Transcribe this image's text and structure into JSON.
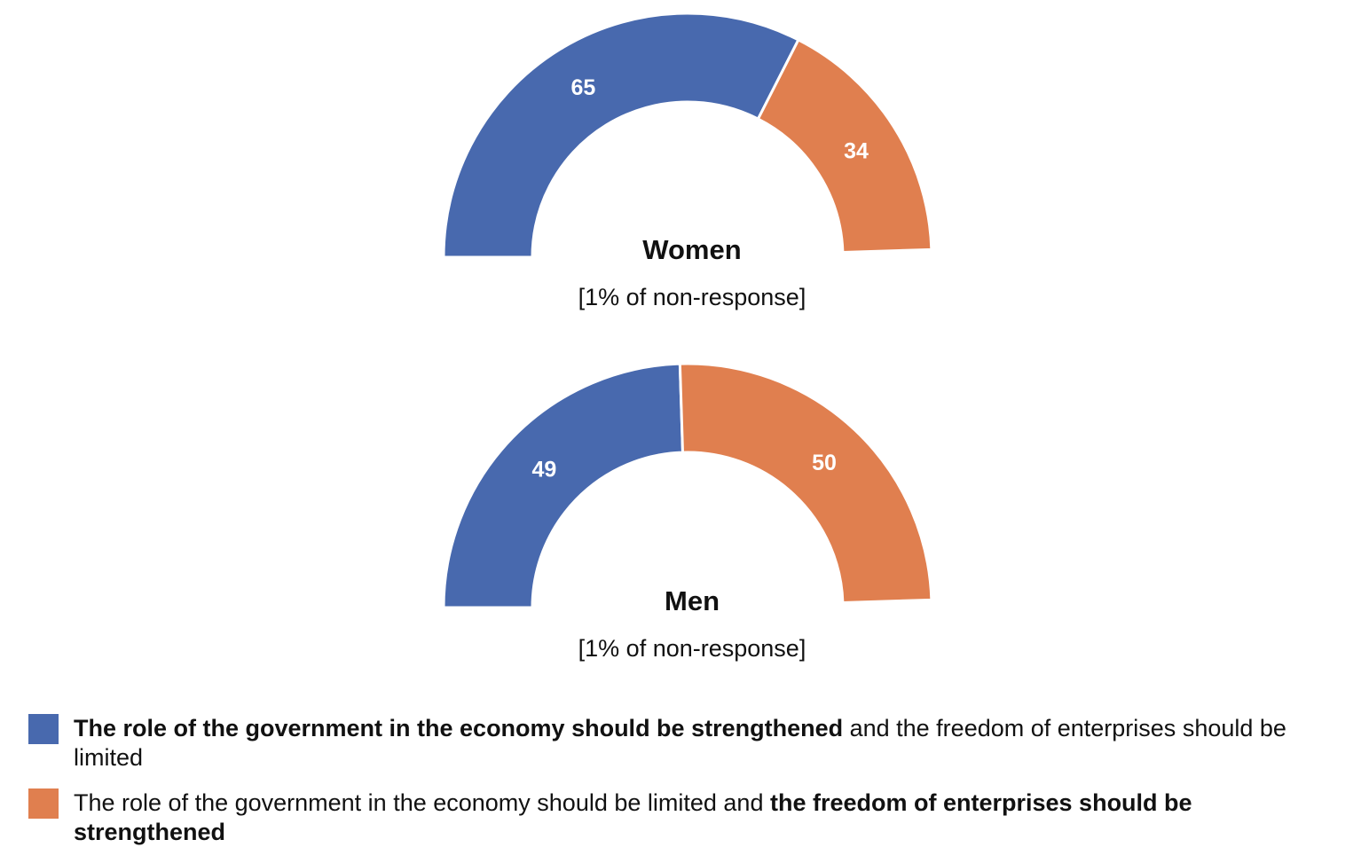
{
  "chart_data": [
    {
      "type": "pie",
      "subtype": "half-donut",
      "title": "Women",
      "subtitle": "[1% of non-response]",
      "values": [
        65,
        34
      ],
      "labels": [
        "65",
        "34"
      ],
      "colors": [
        "#4869AE",
        "#E07F4F"
      ],
      "total_scale": 100
    },
    {
      "type": "pie",
      "subtype": "half-donut",
      "title": "Men",
      "subtitle": "[1% of non-response]",
      "values": [
        49,
        50
      ],
      "labels": [
        "49",
        "50"
      ],
      "colors": [
        "#4869AE",
        "#E07F4F"
      ],
      "total_scale": 100
    }
  ],
  "legend": [
    {
      "color": "#4869AE",
      "bold_part": "The role of the government in the economy should be strengthened",
      "regular_part": " and the freedom of enterprises should be limited"
    },
    {
      "color": "#E07F4F",
      "regular_part": "The role of the government in the economy should be limited and ",
      "bold_part": "the freedom of enterprises should be strengthened"
    }
  ]
}
